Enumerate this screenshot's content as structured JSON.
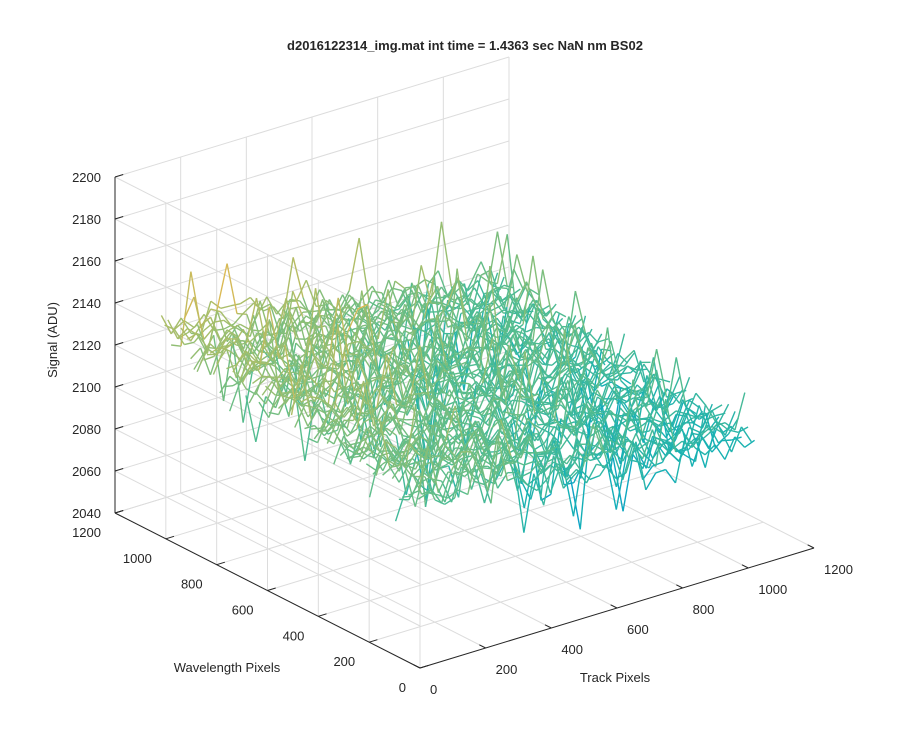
{
  "figure": {
    "title": "d2016122314_img.mat int time = 1.4363 sec  NaN nm BS02"
  },
  "chart_data": {
    "type": "surface3d",
    "title": "d2016122314_img.mat int time = 1.4363 sec  NaN nm BS02",
    "xlabel": "Track Pixels",
    "ylabel": "Wavelength Pixels",
    "zlabel": "Signal (ADU)",
    "xlim": [
      0,
      1200
    ],
    "ylim": [
      0,
      1200
    ],
    "zlim": [
      2040,
      2200
    ],
    "xticks": [
      "0",
      "200",
      "400",
      "600",
      "800",
      "1000",
      "1200"
    ],
    "yticks": [
      "0",
      "200",
      "400",
      "600",
      "800",
      "1000",
      "1200"
    ],
    "zticks": [
      "2040",
      "2060",
      "2080",
      "2100",
      "2120",
      "2140",
      "2160",
      "2180",
      "2200"
    ],
    "grid": true,
    "colormap": "parula",
    "data_extent": {
      "x": [
        0,
        1024
      ],
      "y": [
        0,
        1024
      ]
    },
    "signal_mean": 2118,
    "signal_trend_along_track": -12,
    "signal_trend_along_wavelength": 8,
    "noise_amplitude": 15,
    "spike_max": 2170,
    "dip_min": 2058,
    "colors": {
      "low": "#0072BD",
      "mid": "#1FB39A",
      "high": "#F2BC2E",
      "grid": "#dcdcdc",
      "axis": "#262626"
    }
  }
}
